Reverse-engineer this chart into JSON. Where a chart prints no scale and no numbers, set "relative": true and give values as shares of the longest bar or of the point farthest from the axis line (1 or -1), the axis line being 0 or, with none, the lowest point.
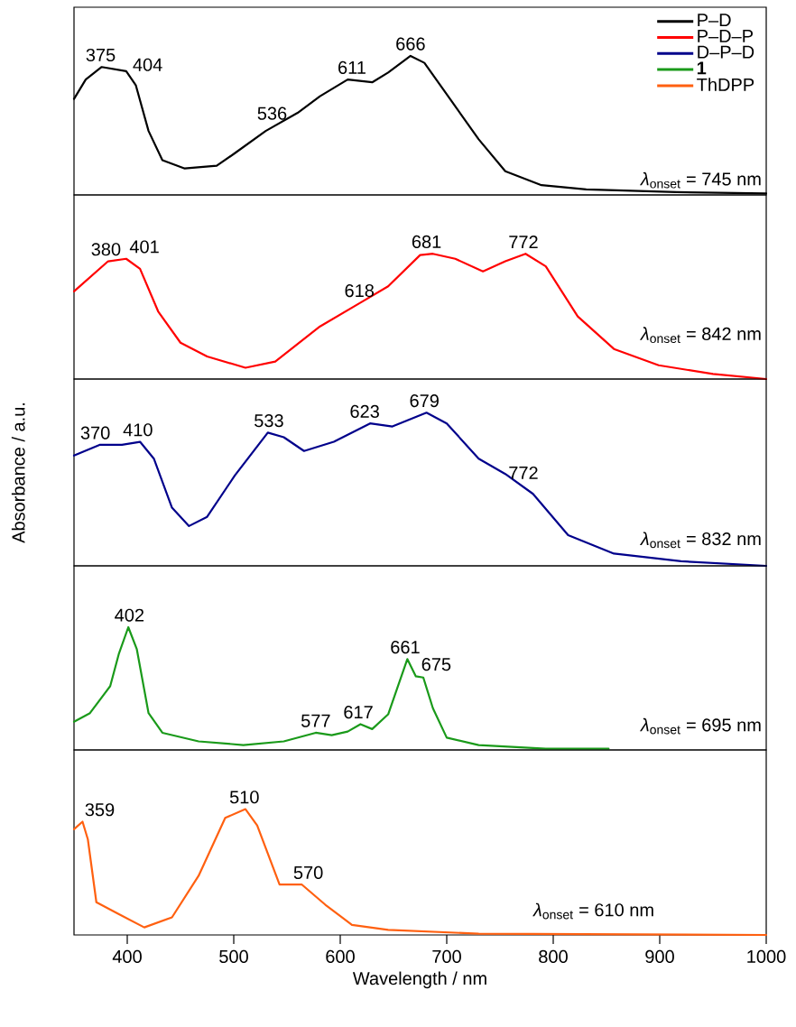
{
  "chart_data": [
    {
      "type": "line",
      "relative": true,
      "xlim": [
        350,
        1000
      ],
      "tick_labels": false,
      "legend": "top right",
      "x": [
        350,
        361,
        376,
        399,
        408,
        420,
        433,
        454,
        484,
        501,
        530,
        560,
        581,
        607,
        630,
        645,
        666,
        679,
        704,
        730,
        755,
        789,
        831,
        916,
        1000
      ],
      "series": [
        {
          "name": "P–D",
          "color": "#000000",
          "values": [
            0.69,
            0.83,
            0.92,
            0.89,
            0.79,
            0.46,
            0.25,
            0.19,
            0.21,
            0.3,
            0.46,
            0.59,
            0.71,
            0.83,
            0.81,
            0.88,
            1.0,
            0.95,
            0.68,
            0.4,
            0.17,
            0.07,
            0.04,
            0.02,
            0.01
          ]
        }
      ],
      "annotations": [
        {
          "text": "375",
          "x": 375,
          "y": 0.92
        },
        {
          "text": "404",
          "x": 404,
          "y": 0.85
        },
        {
          "text": "536",
          "x": 536,
          "y": 0.5
        },
        {
          "text": "611",
          "x": 611,
          "y": 0.83
        },
        {
          "text": "666",
          "x": 666,
          "y": 1.0
        },
        "*λ*$_{onset}$ = 745 nm"
      ]
    },
    {
      "type": "line",
      "relative": true,
      "xlim": [
        350,
        1000
      ],
      "tick_labels": false,
      "x": [
        350,
        382,
        399,
        412,
        429,
        450,
        475,
        511,
        539,
        581,
        619,
        645,
        675,
        687,
        708,
        734,
        755,
        774,
        793,
        823,
        857,
        899,
        950,
        1000
      ],
      "series": [
        {
          "name": "P–D–P",
          "color": "#ff0000",
          "values": [
            0.7,
            0.94,
            0.96,
            0.88,
            0.54,
            0.29,
            0.18,
            0.09,
            0.14,
            0.42,
            0.61,
            0.74,
            0.99,
            1.0,
            0.96,
            0.86,
            0.94,
            1.0,
            0.9,
            0.5,
            0.24,
            0.11,
            0.04,
            0.0
          ]
        }
      ],
      "annotations": [
        {
          "text": "380",
          "x": 380,
          "y": 0.94
        },
        {
          "text": "401",
          "x": 401,
          "y": 0.96
        },
        {
          "text": "618",
          "x": 618,
          "y": 0.61
        },
        {
          "text": "681",
          "x": 681,
          "y": 1.0
        },
        {
          "text": "772",
          "x": 772,
          "y": 1.0
        },
        "*λ*$_{onset}$ = 842 nm"
      ]
    },
    {
      "type": "line",
      "relative": true,
      "xlim": [
        350,
        1000
      ],
      "tick_labels": false,
      "ylabel": "Absorbance / a.u.",
      "x": [
        350,
        374,
        395,
        412,
        425,
        442,
        458,
        475,
        501,
        532,
        547,
        566,
        594,
        628,
        649,
        681,
        700,
        730,
        755,
        781,
        814,
        857,
        920,
        1000
      ],
      "series": [
        {
          "name": "D–P–D",
          "color": "#00008b",
          "values": [
            0.72,
            0.79,
            0.79,
            0.81,
            0.7,
            0.38,
            0.26,
            0.32,
            0.59,
            0.87,
            0.84,
            0.75,
            0.81,
            0.93,
            0.91,
            1.0,
            0.93,
            0.7,
            0.6,
            0.47,
            0.2,
            0.08,
            0.03,
            0.0
          ]
        }
      ],
      "annotations": [
        {
          "text": "370",
          "x": 370,
          "y": 0.79
        },
        {
          "text": "410",
          "x": 410,
          "y": 0.81
        },
        {
          "text": "533",
          "x": 533,
          "y": 0.87
        },
        {
          "text": "623",
          "x": 623,
          "y": 0.93
        },
        {
          "text": "679",
          "x": 679,
          "y": 1.0
        },
        {
          "text": "772",
          "x": 772,
          "y": 0.53
        },
        "*λ*$_{onset}$ = 832 nm"
      ]
    },
    {
      "type": "line",
      "relative": true,
      "xlim": [
        350,
        1000
      ],
      "tick_labels": false,
      "x": [
        350,
        365,
        384,
        392,
        401,
        409,
        420,
        433,
        467,
        509,
        547,
        577,
        592,
        607,
        619,
        630,
        645,
        663,
        671,
        678,
        687,
        700,
        730,
        793,
        852
      ],
      "series": [
        {
          "name": "**1**",
          "color": "#1a9a1a",
          "values": [
            0.23,
            0.3,
            0.52,
            0.78,
            1.0,
            0.82,
            0.3,
            0.14,
            0.07,
            0.04,
            0.07,
            0.14,
            0.12,
            0.15,
            0.21,
            0.17,
            0.29,
            0.74,
            0.6,
            0.59,
            0.34,
            0.1,
            0.04,
            0.01,
            0.01
          ]
        }
      ],
      "annotations": [
        {
          "text": "402",
          "x": 402,
          "y": 1.0
        },
        {
          "text": "577",
          "x": 577,
          "y": 0.14
        },
        {
          "text": "617",
          "x": 617,
          "y": 0.21
        },
        {
          "text": "661",
          "x": 661,
          "y": 0.74
        },
        {
          "text": "675",
          "x": 675,
          "y": 0.6
        },
        "*λ*$_{onset}$ = 695 nm"
      ]
    },
    {
      "type": "line",
      "relative": true,
      "xlim": [
        350,
        1000
      ],
      "tick_labels": "x",
      "xlabel": "Wavelength / nm",
      "xticks": [
        400,
        500,
        600,
        700,
        800,
        900,
        1000
      ],
      "x": [
        350,
        358,
        363,
        371,
        391,
        416,
        442,
        467,
        492,
        511,
        522,
        543,
        564,
        586,
        611,
        645,
        730,
        1000
      ],
      "series": [
        {
          "name": "ThDPP",
          "color": "#ff6010",
          "values": [
            0.84,
            0.9,
            0.76,
            0.26,
            0.17,
            0.06,
            0.14,
            0.47,
            0.93,
            1.0,
            0.87,
            0.4,
            0.4,
            0.24,
            0.08,
            0.04,
            0.01,
            0.0
          ]
        }
      ],
      "annotations": [
        {
          "text": "359",
          "x": 359,
          "y": 0.9
        },
        {
          "text": "510",
          "x": 510,
          "y": 1.0
        },
        {
          "text": "570",
          "x": 570,
          "y": 0.4
        },
        "*λ*$_{onset}$ = 610 nm"
      ]
    }
  ]
}
